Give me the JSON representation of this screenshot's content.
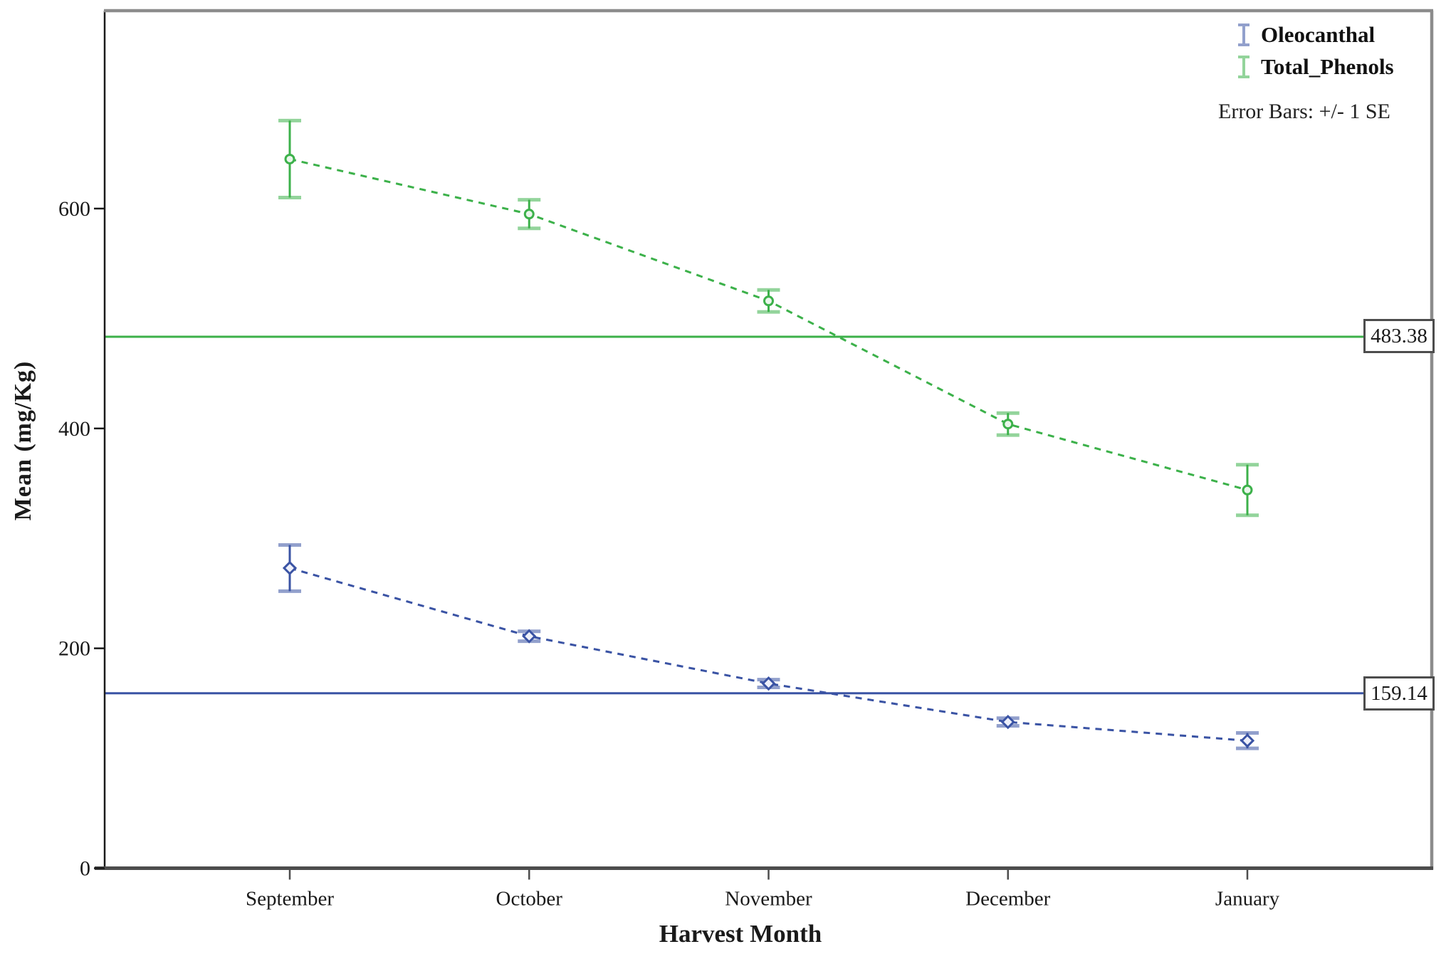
{
  "chart_data": {
    "type": "line",
    "xlabel": "Harvest Month",
    "ylabel": "Mean (mg/Kg)",
    "categories": [
      "September",
      "October",
      "November",
      "December",
      "January"
    ],
    "yticks": [
      0,
      200,
      400,
      600
    ],
    "ylim": [
      0,
      780
    ],
    "grid": false,
    "line_style": "dashed",
    "legend_position": "top-right",
    "error_bar_note": "Error Bars: +/- 1 SE",
    "series": [
      {
        "name": "Oleocanthal",
        "color": "#3A53A4",
        "marker": "diamond",
        "means": [
          273,
          211,
          168,
          133,
          116
        ],
        "se": [
          21,
          4.5,
          3.5,
          3.5,
          7
        ],
        "reference_line_value": 159.14,
        "reference_label": "159.14"
      },
      {
        "name": "Total_Phenols",
        "color": "#3CB14A",
        "marker": "circle",
        "means": [
          645,
          595,
          516,
          404,
          344
        ],
        "se": [
          35,
          13,
          10,
          10,
          23
        ],
        "reference_line_value": 483.38,
        "reference_label": "483.38"
      }
    ]
  }
}
